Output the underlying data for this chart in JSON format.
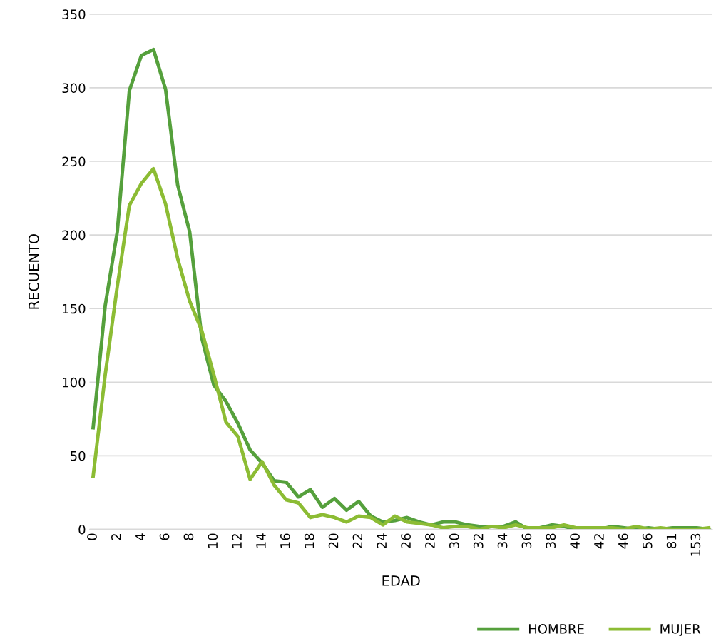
{
  "chart_data": {
    "type": "line",
    "xlabel": "EDAD",
    "ylabel": "RECUENTO",
    "categories": [
      "0",
      null,
      "2",
      null,
      "4",
      null,
      "6",
      null,
      "8",
      null,
      "10",
      null,
      "12",
      null,
      "14",
      null,
      "16",
      null,
      "18",
      null,
      "20",
      null,
      "22",
      null,
      "24",
      null,
      "26",
      null,
      "28",
      null,
      "30",
      null,
      "32",
      null,
      "34",
      null,
      "36",
      null,
      "38",
      null,
      "40",
      null,
      "42",
      null,
      "46",
      null,
      "56",
      null,
      "81",
      null,
      "153",
      null
    ],
    "series": [
      {
        "name": "HOMBRE",
        "color": "#55a03c",
        "values": [
          69,
          152,
          202,
          298,
          322,
          326,
          299,
          234,
          202,
          130,
          98,
          87,
          72,
          54,
          45,
          33,
          32,
          22,
          27,
          15,
          21,
          13,
          19,
          9,
          5,
          6,
          8,
          5,
          3,
          5,
          5,
          3,
          2,
          2,
          2,
          5,
          0,
          1,
          3,
          2,
          0,
          1,
          0,
          2,
          1,
          0,
          1,
          0,
          1,
          1,
          1,
          0
        ]
      },
      {
        "name": "MUJER",
        "color": "#8cbc34",
        "values": [
          36,
          105,
          165,
          220,
          235,
          245,
          221,
          184,
          155,
          135,
          105,
          73,
          63,
          34,
          46,
          30,
          20,
          18,
          8,
          10,
          8,
          5,
          9,
          8,
          3,
          9,
          5,
          4,
          3,
          1,
          2,
          2,
          0,
          2,
          1,
          3,
          1,
          1,
          1,
          3,
          1,
          1,
          1,
          1,
          0,
          2,
          0,
          1,
          0,
          0,
          0,
          1
        ]
      }
    ],
    "ylim": [
      0,
      350
    ],
    "yticks": [
      0,
      50,
      100,
      150,
      200,
      250,
      300,
      350
    ],
    "grid": "y",
    "legend": "bottom right",
    "marker": "none",
    "line_style": "solid"
  }
}
